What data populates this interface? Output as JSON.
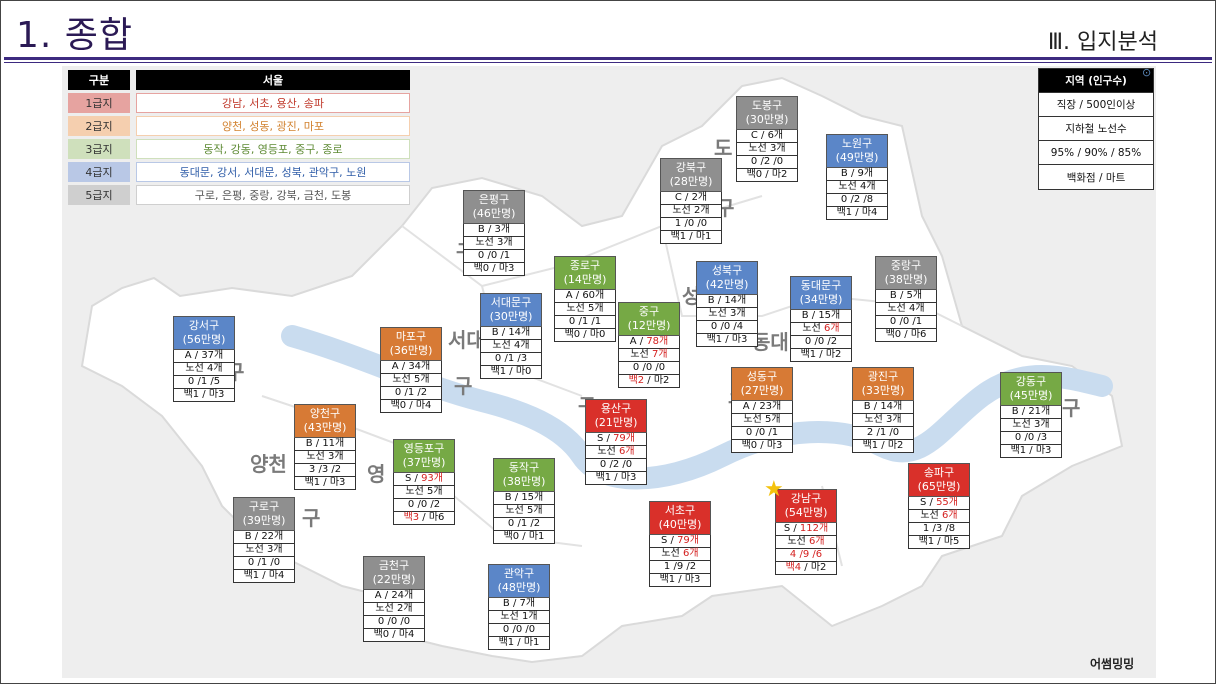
{
  "header": {
    "title": "1. 종합",
    "section": "Ⅲ. 입지분석"
  },
  "legend": {
    "head_key": "구분",
    "head_value": "서울",
    "rows": [
      {
        "grade": "1급지",
        "areas": "강남, 서초, 용산, 송파",
        "color": "#c0392b",
        "bg": "#e6a3a0"
      },
      {
        "grade": "2급지",
        "areas": "양천, 성동, 광진, 마포",
        "color": "#d2822f",
        "bg": "#f5cfaf"
      },
      {
        "grade": "3급지",
        "areas": "동작, 강동, 영등포, 중구, 종로",
        "color": "#5d8a33",
        "bg": "#cfe0bc"
      },
      {
        "grade": "4급지",
        "areas": "동대문, 강서, 서대문, 성북, 관악구, 노원",
        "color": "#2f5da8",
        "bg": "#b9c8e6"
      },
      {
        "grade": "5급지",
        "areas": "구로, 은평, 중랑, 강북, 금천, 도봉",
        "color": "#555555",
        "bg": "#cfcfcf"
      }
    ]
  },
  "keybox": {
    "head": "지역 (인구수)",
    "rows": [
      "직장 / 500인이상",
      "지하철 노선수",
      "95% / 90% / 85%",
      "백화점 / 마트"
    ]
  },
  "search_icon": "search-icon",
  "districts": [
    {
      "id": "dobong",
      "name": "도봉구",
      "pop": "(30만명)",
      "cls": "c5",
      "rows": [
        [
          "C / 6개"
        ],
        [
          "노선 3개"
        ],
        [
          "0 /2 /0"
        ],
        [
          "백0 / 마2"
        ]
      ]
    },
    {
      "id": "nowon",
      "name": "노원구",
      "pop": "(49만명)",
      "cls": "c4",
      "rows": [
        [
          "B / 9개"
        ],
        [
          "노선 4개"
        ],
        [
          "0 /2 /8"
        ],
        [
          "백1 / 마4"
        ]
      ]
    },
    {
      "id": "gangbuk",
      "name": "강북구",
      "pop": "(28만명)",
      "cls": "c5",
      "rows": [
        [
          "C / 2개"
        ],
        [
          "노선 2개"
        ],
        [
          "1 /0 /0"
        ],
        [
          "백1 / 마1"
        ]
      ]
    },
    {
      "id": "eunpyeong",
      "name": "은평구",
      "pop": "(46만명)",
      "cls": "c5",
      "rows": [
        [
          "B / 3개"
        ],
        [
          "노선 3개"
        ],
        [
          "0 /0 /1"
        ],
        [
          "백0 / 마3"
        ]
      ]
    },
    {
      "id": "jongno",
      "name": "종로구",
      "pop": "(14만명)",
      "cls": "c3",
      "rows": [
        [
          "A / 60개"
        ],
        [
          "노선 5개"
        ],
        [
          "0 /1 /1"
        ],
        [
          "백0 / 마0"
        ]
      ]
    },
    {
      "id": "seongbuk",
      "name": "성북구",
      "pop": "(42만명)",
      "cls": "c4",
      "rows": [
        [
          "B / 14개"
        ],
        [
          "노선 3개"
        ],
        [
          "0 /0 /4"
        ],
        [
          "백1 / 마3"
        ]
      ]
    },
    {
      "id": "jungnang",
      "name": "중랑구",
      "pop": "(38만명)",
      "cls": "c5",
      "rows": [
        [
          "B / 5개"
        ],
        [
          "노선 4개"
        ],
        [
          "0 /0 /1"
        ],
        [
          "백0 / 마6"
        ]
      ]
    },
    {
      "id": "dongdaemun",
      "name": "동대문구",
      "pop": "(34만명)",
      "cls": "c4",
      "rows": [
        [
          "B / 15개"
        ],
        [
          "노선 ",
          "6개"
        ],
        [
          "0 /0 /2"
        ],
        [
          "백1 / 마2"
        ]
      ]
    },
    {
      "id": "seodaemun",
      "name": "서대문구",
      "pop": "(30만명)",
      "cls": "c4",
      "rows": [
        [
          "B / 14개"
        ],
        [
          "노선 4개"
        ],
        [
          "0 /1 /3"
        ],
        [
          "백1 / 마0"
        ]
      ]
    },
    {
      "id": "junggu",
      "name": "중구",
      "pop": "(12만명)",
      "cls": "c3",
      "rows": [
        [
          "A / ",
          "78개"
        ],
        [
          "노선 ",
          "7개"
        ],
        [
          "0 /0 /0"
        ],
        [
          "",
          "백2",
          " / 마2"
        ]
      ]
    },
    {
      "id": "gangseo",
      "name": "강서구",
      "pop": "(56만명)",
      "cls": "c4",
      "rows": [
        [
          "A / 37개"
        ],
        [
          "노선 4개"
        ],
        [
          "0 /1 /5"
        ],
        [
          "백1 / 마3"
        ]
      ]
    },
    {
      "id": "mapo",
      "name": "마포구",
      "pop": "(36만명)",
      "cls": "c2",
      "rows": [
        [
          "A / 34개"
        ],
        [
          "노선 5개"
        ],
        [
          "0 /1 /2"
        ],
        [
          "백0 / 마4"
        ]
      ]
    },
    {
      "id": "seongdong",
      "name": "성동구",
      "pop": "(27만명)",
      "cls": "c2",
      "rows": [
        [
          "A / 23개"
        ],
        [
          "노선 5개"
        ],
        [
          "0 /0 /1"
        ],
        [
          "백0 / 마3"
        ]
      ]
    },
    {
      "id": "gwangjin",
      "name": "광진구",
      "pop": "(33만명)",
      "cls": "c2",
      "rows": [
        [
          "B / 14개"
        ],
        [
          "노선 3개"
        ],
        [
          "2 /1 /0"
        ],
        [
          "백1 / 마2"
        ]
      ]
    },
    {
      "id": "gangdong",
      "name": "강동구",
      "pop": "(45만명)",
      "cls": "c3",
      "rows": [
        [
          "B / 21개"
        ],
        [
          "노선 3개"
        ],
        [
          "0 /0 /3"
        ],
        [
          "백1 / 마3"
        ]
      ]
    },
    {
      "id": "yangcheon",
      "name": "양천구",
      "pop": "(43만명)",
      "cls": "c2",
      "rows": [
        [
          "B / 11개"
        ],
        [
          "노선 3개"
        ],
        [
          "3 /3 /2"
        ],
        [
          "백1 / 마3"
        ]
      ]
    },
    {
      "id": "yongsan",
      "name": "용산구",
      "pop": "(21만명)",
      "cls": "c1",
      "rows": [
        [
          "S / ",
          "79개"
        ],
        [
          "노선 ",
          "6개"
        ],
        [
          "0 /2 /0"
        ],
        [
          "백1 / 마3"
        ]
      ]
    },
    {
      "id": "yeongdeungpo",
      "name": "영등포구",
      "pop": "(37만명)",
      "cls": "c3",
      "rows": [
        [
          "S / ",
          "93개"
        ],
        [
          "노선 5개"
        ],
        [
          "0 /0 /2"
        ],
        [
          "",
          "백3",
          " / 마6"
        ]
      ]
    },
    {
      "id": "dongjak",
      "name": "동작구",
      "pop": "(38만명)",
      "cls": "c3",
      "rows": [
        [
          "B / 15개"
        ],
        [
          "노선 5개"
        ],
        [
          "0 /1 /2"
        ],
        [
          "백0 / 마1"
        ]
      ]
    },
    {
      "id": "songpa",
      "name": "송파구",
      "pop": "(65만명)",
      "cls": "c1",
      "rows": [
        [
          "S / ",
          "55개"
        ],
        [
          "노선 ",
          "6개"
        ],
        [
          "1 /3 /8"
        ],
        [
          "백1 / 마5"
        ]
      ]
    },
    {
      "id": "gangnam",
      "name": "강남구",
      "pop": "(54만명)",
      "cls": "c1",
      "rows": [
        [
          "S / ",
          "112개"
        ],
        [
          "노선 ",
          "6개"
        ],
        [
          "",
          "4 /9 /6"
        ],
        [
          "",
          "백4",
          " / 마2"
        ]
      ]
    },
    {
      "id": "seocho",
      "name": "서초구",
      "pop": "(40만명)",
      "cls": "c1",
      "rows": [
        [
          "S / ",
          "79개"
        ],
        [
          "노선 ",
          "6개"
        ],
        [
          "1 /9 /2"
        ],
        [
          "백1 / 마3"
        ]
      ]
    },
    {
      "id": "guro",
      "name": "구로구",
      "pop": "(39만명)",
      "cls": "c5",
      "rows": [
        [
          "B / 22개"
        ],
        [
          "노선 3개"
        ],
        [
          "0 /1 /0"
        ],
        [
          "백1 / 마4"
        ]
      ]
    },
    {
      "id": "geumcheon",
      "name": "금천구",
      "pop": "(22만명)",
      "cls": "c5",
      "rows": [
        [
          "A / 24개"
        ],
        [
          "노선 2개"
        ],
        [
          "0 /0 /0"
        ],
        [
          "백0 / 마4"
        ]
      ]
    },
    {
      "id": "gwanak",
      "name": "관악구",
      "pop": "(48만명)",
      "cls": "c4",
      "rows": [
        [
          "B / 7개"
        ],
        [
          "노선 1개"
        ],
        [
          "0 /0 /0"
        ],
        [
          "백1 / 마1"
        ]
      ]
    }
  ],
  "map_labels": [
    "도",
    "구",
    "구",
    "서대",
    "구",
    "동대",
    "구",
    "성",
    "구",
    "양천",
    "영",
    "구",
    "구",
    "구"
  ],
  "star_icon": "star-icon",
  "credit": "어썸밍밍"
}
